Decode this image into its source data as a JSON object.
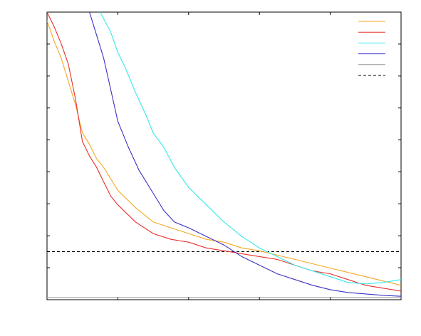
{
  "chart_data": {
    "type": "line",
    "title": "",
    "xlabel": "",
    "ylabel": "",
    "xlim": [
      0,
      1
    ],
    "ylim": [
      0,
      1
    ],
    "grid": false,
    "legend": "top-right",
    "reference_line": {
      "y": 0.167,
      "style": "dashed",
      "color": "#000000"
    },
    "baseline": {
      "y": 0.008,
      "color": "#999999"
    },
    "series": [
      {
        "color": "#f5a623",
        "x": [
          0.0,
          0.02,
          0.04,
          0.06,
          0.08,
          0.1,
          0.12,
          0.14,
          0.16,
          0.18,
          0.2,
          0.25,
          0.3,
          0.35,
          0.4,
          0.45,
          0.5,
          0.55,
          0.6,
          0.7,
          0.8,
          0.9,
          1.0
        ],
        "y": [
          0.97,
          0.9,
          0.84,
          0.76,
          0.68,
          0.58,
          0.54,
          0.49,
          0.46,
          0.42,
          0.38,
          0.32,
          0.27,
          0.25,
          0.23,
          0.21,
          0.2,
          0.18,
          0.17,
          0.14,
          0.11,
          0.08,
          0.05
        ]
      },
      {
        "color": "#e8302a",
        "x": [
          0.0,
          0.02,
          0.04,
          0.06,
          0.08,
          0.1,
          0.12,
          0.14,
          0.16,
          0.18,
          0.2,
          0.25,
          0.3,
          0.35,
          0.4,
          0.45,
          0.5,
          0.55,
          0.6,
          0.65,
          0.7,
          0.75,
          0.8,
          0.85,
          0.9,
          1.0
        ],
        "y": [
          1.0,
          0.95,
          0.89,
          0.82,
          0.7,
          0.55,
          0.5,
          0.46,
          0.41,
          0.36,
          0.33,
          0.27,
          0.23,
          0.21,
          0.2,
          0.18,
          0.17,
          0.16,
          0.15,
          0.14,
          0.12,
          0.1,
          0.09,
          0.07,
          0.05,
          0.03
        ]
      },
      {
        "color": "#33e8e8",
        "x": [
          0.15,
          0.18,
          0.2,
          0.22,
          0.25,
          0.28,
          0.3,
          0.33,
          0.36,
          0.4,
          0.45,
          0.5,
          0.55,
          0.6,
          0.65,
          0.7,
          0.75,
          0.8,
          0.85,
          0.9,
          0.95,
          1.0
        ],
        "y": [
          1.0,
          0.93,
          0.86,
          0.81,
          0.72,
          0.64,
          0.58,
          0.53,
          0.46,
          0.39,
          0.33,
          0.27,
          0.22,
          0.18,
          0.15,
          0.12,
          0.1,
          0.08,
          0.06,
          0.055,
          0.06,
          0.07
        ]
      },
      {
        "color": "#3a32c4",
        "x": [
          0.12,
          0.14,
          0.16,
          0.18,
          0.2,
          0.23,
          0.26,
          0.3,
          0.33,
          0.36,
          0.4,
          0.45,
          0.5,
          0.55,
          0.6,
          0.65,
          0.7,
          0.75,
          0.8,
          0.85,
          0.9,
          0.95,
          1.0
        ],
        "y": [
          1.0,
          0.92,
          0.84,
          0.73,
          0.62,
          0.53,
          0.45,
          0.37,
          0.31,
          0.27,
          0.25,
          0.22,
          0.19,
          0.15,
          0.12,
          0.09,
          0.07,
          0.05,
          0.035,
          0.025,
          0.02,
          0.015,
          0.012
        ]
      }
    ]
  }
}
